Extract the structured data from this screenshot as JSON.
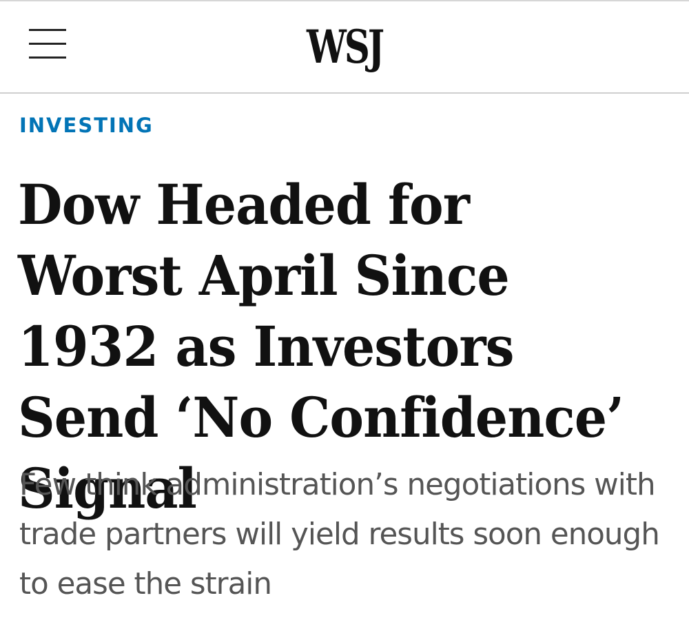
{
  "header": {
    "logo": "WSJ",
    "menu_icon": "hamburger-menu-icon"
  },
  "article": {
    "section": "INVESTING",
    "headline": "Dow Headed for Worst April Since 1932 as Investors Send ‘No Confidence’ Signal",
    "subhead": "Few think administration’s negotiations with trade partners will yield results soon enough to ease the strain"
  },
  "colors": {
    "section_blue": "#0274b6",
    "headline": "#111111",
    "subhead": "#555555"
  }
}
